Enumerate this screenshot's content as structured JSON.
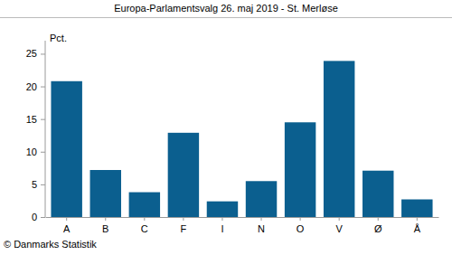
{
  "chart_data": {
    "type": "bar",
    "title": "Europa-Parlamentsvalg 26. maj 2019 - St. Merløse",
    "y_label": "Pct.",
    "annotations": [
      "© Danmarks Statistik"
    ],
    "categories": [
      "A",
      "B",
      "C",
      "F",
      "I",
      "N",
      "O",
      "V",
      "Ø",
      "Å"
    ],
    "values": [
      20.8,
      7.2,
      3.8,
      12.9,
      2.4,
      5.5,
      14.5,
      23.9,
      7.1,
      2.7
    ],
    "color": "#0b5f8f",
    "ylim": [
      0,
      27
    ],
    "yticks": [
      0,
      5,
      10,
      15,
      20,
      25
    ],
    "grid": false
  }
}
